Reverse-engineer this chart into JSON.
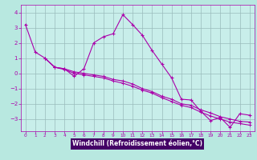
{
  "xlabel": "Windchill (Refroidissement éolien,°C)",
  "bg_color": "#b8e8e0",
  "plot_bg_color": "#c8eeea",
  "line_color": "#aa00aa",
  "grid_color": "#99bbbb",
  "xlabel_bg": "#440066",
  "xlabel_color": "#ffffff",
  "series1": [
    [
      0,
      3.2
    ],
    [
      1,
      1.4
    ],
    [
      2,
      1.0
    ],
    [
      3,
      0.4
    ],
    [
      4,
      0.3
    ],
    [
      5,
      -0.2
    ],
    [
      6,
      0.3
    ],
    [
      7,
      2.0
    ],
    [
      8,
      2.4
    ],
    [
      9,
      2.6
    ],
    [
      10,
      3.85
    ],
    [
      11,
      3.2
    ],
    [
      12,
      2.5
    ],
    [
      13,
      1.5
    ],
    [
      14,
      0.6
    ],
    [
      15,
      -0.3
    ],
    [
      16,
      -1.7
    ],
    [
      17,
      -1.75
    ],
    [
      18,
      -2.5
    ],
    [
      19,
      -3.1
    ],
    [
      20,
      -2.9
    ],
    [
      21,
      -3.55
    ],
    [
      22,
      -2.65
    ],
    [
      23,
      -2.75
    ]
  ],
  "series2": [
    [
      2,
      1.0
    ],
    [
      3,
      0.4
    ],
    [
      4,
      0.3
    ],
    [
      5,
      0.1
    ],
    [
      6,
      0.0
    ],
    [
      7,
      -0.1
    ],
    [
      8,
      -0.2
    ],
    [
      9,
      -0.4
    ],
    [
      10,
      -0.5
    ],
    [
      11,
      -0.7
    ],
    [
      12,
      -1.0
    ],
    [
      13,
      -1.2
    ],
    [
      14,
      -1.5
    ],
    [
      15,
      -1.7
    ],
    [
      16,
      -2.0
    ],
    [
      17,
      -2.1
    ],
    [
      18,
      -2.4
    ],
    [
      19,
      -2.6
    ],
    [
      20,
      -2.85
    ],
    [
      21,
      -3.0
    ],
    [
      22,
      -3.15
    ],
    [
      23,
      -3.2
    ]
  ],
  "series3": [
    [
      2,
      1.0
    ],
    [
      3,
      0.4
    ],
    [
      4,
      0.25
    ],
    [
      5,
      0.0
    ],
    [
      6,
      -0.1
    ],
    [
      7,
      -0.2
    ],
    [
      8,
      -0.3
    ],
    [
      9,
      -0.5
    ],
    [
      10,
      -0.65
    ],
    [
      11,
      -0.85
    ],
    [
      12,
      -1.1
    ],
    [
      13,
      -1.3
    ],
    [
      14,
      -1.6
    ],
    [
      15,
      -1.85
    ],
    [
      16,
      -2.1
    ],
    [
      17,
      -2.25
    ],
    [
      18,
      -2.55
    ],
    [
      19,
      -2.8
    ],
    [
      20,
      -3.0
    ],
    [
      21,
      -3.2
    ],
    [
      22,
      -3.3
    ],
    [
      23,
      -3.4
    ]
  ],
  "ylim": [
    -3.8,
    4.5
  ],
  "xlim": [
    -0.5,
    23.5
  ],
  "yticks": [
    -3,
    -2,
    -1,
    0,
    1,
    2,
    3,
    4
  ],
  "xticks": [
    0,
    1,
    2,
    3,
    4,
    5,
    6,
    7,
    8,
    9,
    10,
    11,
    12,
    13,
    14,
    15,
    16,
    17,
    18,
    19,
    20,
    21,
    22,
    23
  ]
}
